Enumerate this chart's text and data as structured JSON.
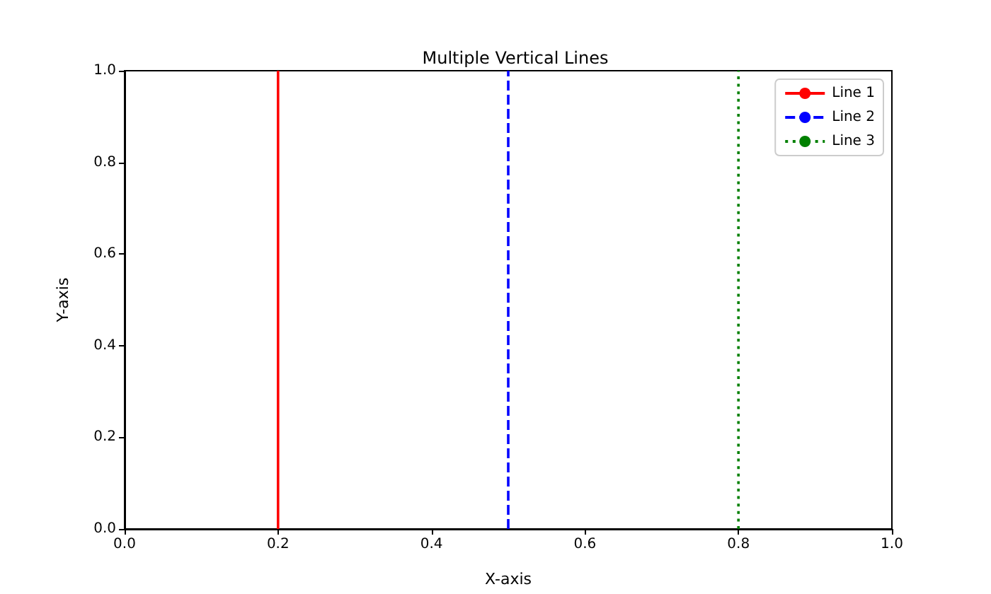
{
  "chart_data": {
    "type": "line",
    "title": "Multiple Vertical Lines",
    "xlabel": "X-axis",
    "ylabel": "Y-axis",
    "series": [
      {
        "name": "Line 1",
        "color": "#ff0000",
        "line_style": "solid",
        "x": [
          0.2,
          0.2
        ],
        "values": [
          0,
          1
        ]
      },
      {
        "name": "Line 2",
        "color": "#0000ff",
        "line_style": "dashed",
        "x": [
          0.5,
          0.5
        ],
        "values": [
          0,
          1
        ]
      },
      {
        "name": "Line 3",
        "color": "#008000",
        "line_style": "dotted",
        "x": [
          0.8,
          0.8
        ],
        "values": [
          0,
          1
        ]
      }
    ],
    "xlim": [
      0,
      1
    ],
    "ylim": [
      0,
      1
    ],
    "xticks": [
      {
        "value": 0,
        "label": "0.0"
      },
      0.2,
      0.4,
      0.6,
      0.8,
      {
        "value": 1,
        "label": "1.0"
      }
    ],
    "yticks": [
      {
        "value": 0,
        "label": "0.0"
      },
      0.2,
      0.4,
      0.6,
      0.8,
      {
        "value": 1,
        "label": "1.0"
      }
    ],
    "grid": false,
    "legend": "top right",
    "marker": "none"
  }
}
